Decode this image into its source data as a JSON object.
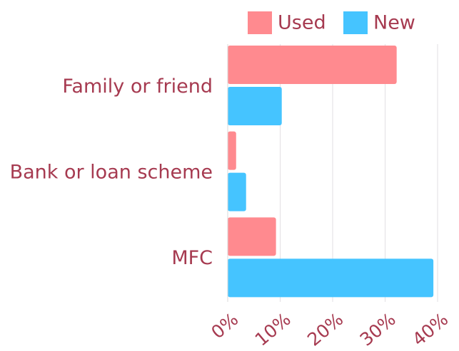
{
  "chart_data": {
    "type": "bar",
    "orientation": "horizontal",
    "categories": [
      "Family or friend",
      "Bank or loan scheme",
      "MFC"
    ],
    "series": [
      {
        "name": "Used",
        "color": "#ff8a8f",
        "values": [
          32.2,
          1.6,
          9.2
        ]
      },
      {
        "name": "New",
        "color": "#45c4ff",
        "values": [
          10.3,
          3.5,
          39.2
        ]
      }
    ],
    "xlim": [
      0,
      40
    ],
    "xticks": [
      {
        "value": 0,
        "label": "0%"
      },
      {
        "value": 10,
        "label": "10%"
      },
      {
        "value": 20,
        "label": "20%"
      },
      {
        "value": 30,
        "label": "30%"
      },
      {
        "value": 40,
        "label": "40%"
      }
    ],
    "grid": true,
    "legend": "top-right"
  }
}
